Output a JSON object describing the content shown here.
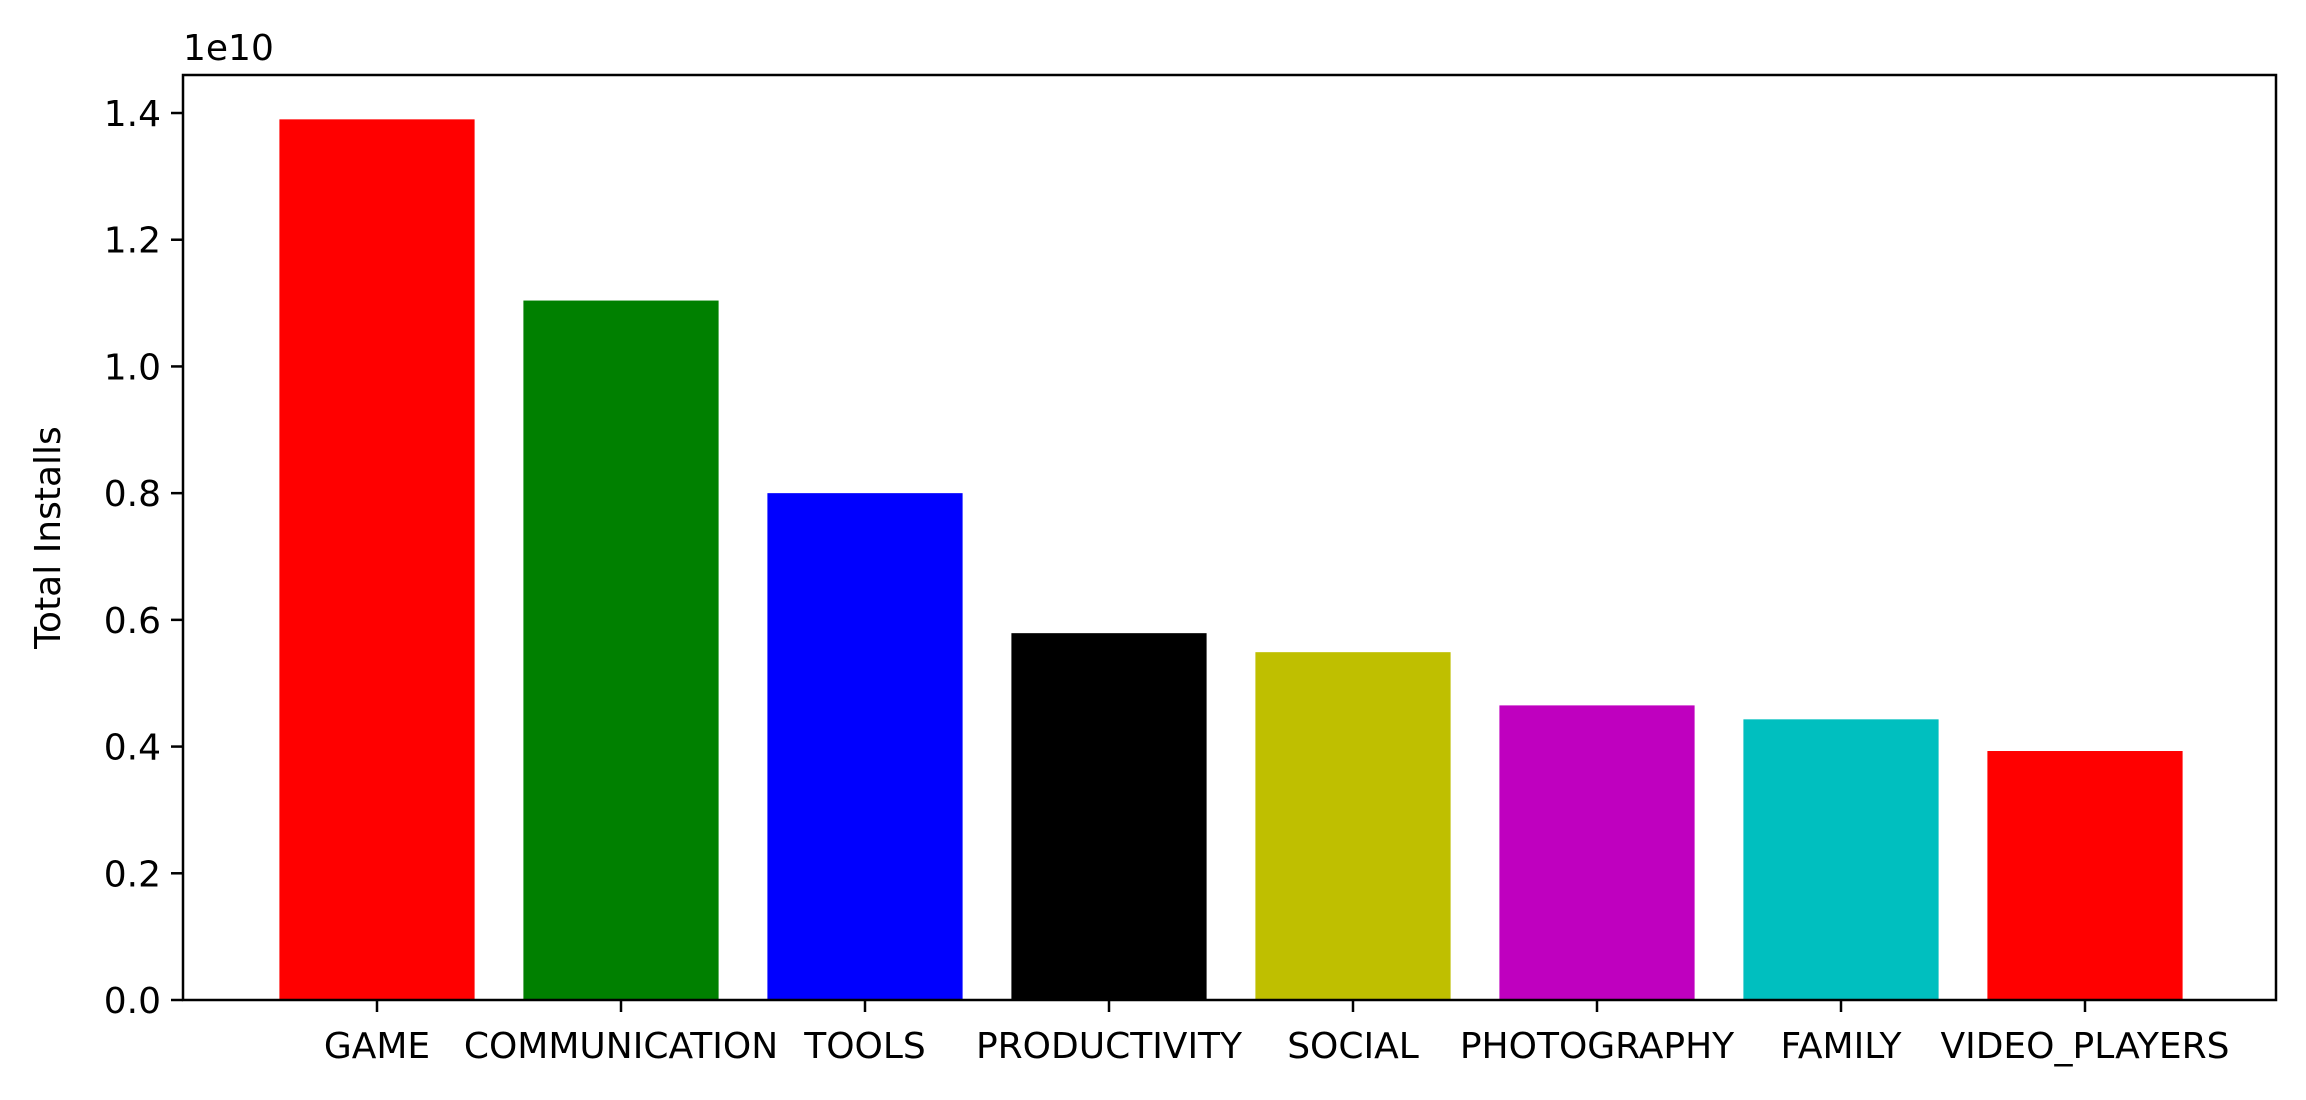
{
  "chart_data": {
    "type": "bar",
    "ylabel": "Total Installs",
    "offset_label": "1e10",
    "y_scale_factor": 10000000000,
    "ylim": [
      0,
      1.46
    ],
    "yticks": [
      0.0,
      0.2,
      0.4,
      0.6,
      0.8,
      1.0,
      1.2,
      1.4
    ],
    "ytick_labels": [
      "0.0",
      "0.2",
      "0.4",
      "0.6",
      "0.8",
      "1.0",
      "1.2",
      "1.4"
    ],
    "categories": [
      "GAME",
      "COMMUNICATION",
      "TOOLS",
      "PRODUCTIVITY",
      "SOCIAL",
      "PHOTOGRAPHY",
      "FAMILY",
      "VIDEO_PLAYERS"
    ],
    "values": [
      13900000000,
      11040000000,
      8000000000,
      5790000000,
      5490000000,
      4650000000,
      4430000000,
      3930000000
    ],
    "colors": [
      "#ff0000",
      "#008000",
      "#0000ff",
      "#000000",
      "#bfbf00",
      "#bf00bf",
      "#00bfbf",
      "#ff0000"
    ],
    "grid": false,
    "legend": false
  }
}
